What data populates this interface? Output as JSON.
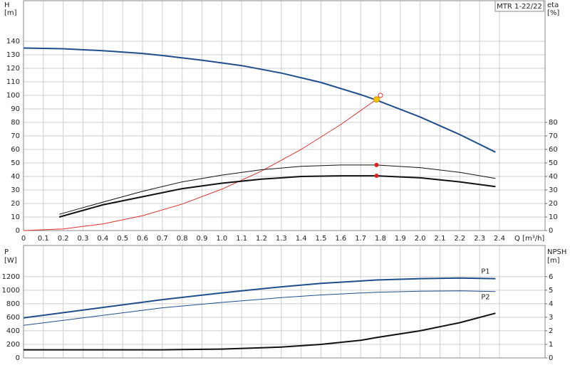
{
  "chart_data": [
    {
      "type": "line",
      "legend": "MTR 1-22/22",
      "y_label": "H",
      "y_unit": "[m]",
      "y2_label": "eta",
      "y2_unit": "[%]",
      "x_label": "Q [m³/h]",
      "xlim": [
        0,
        2.63
      ],
      "ylim": [
        0,
        170
      ],
      "y2lim": [
        0,
        170
      ],
      "grid": true,
      "xticks": [
        0,
        0.1,
        0.2,
        0.3,
        0.4,
        0.5,
        0.6,
        0.7,
        0.8,
        0.9,
        {
          "value": 1,
          "label": "1.0"
        },
        1.1,
        1.2,
        1.3,
        1.4,
        1.5,
        1.6,
        1.7,
        1.8,
        1.9,
        {
          "value": 2,
          "label": "2.0"
        },
        2.1,
        2.2,
        2.3,
        2.4
      ],
      "yticks": [
        0,
        10,
        20,
        30,
        40,
        50,
        60,
        70,
        80,
        90,
        100,
        110,
        120,
        130,
        140
      ],
      "y2ticks": [
        0,
        10,
        20,
        30,
        40,
        50,
        60,
        70,
        80
      ],
      "duty_point": {
        "x": 1.78,
        "y": 97,
        "color": "#f5c400"
      },
      "requested_point": {
        "x": 1.8,
        "y": 100,
        "color": "#e03030"
      },
      "series": [
        {
          "color": "#1f4e8c",
          "width": 2,
          "x": [
            0,
            0.2,
            0.4,
            0.6,
            0.7,
            0.9,
            1.1,
            1.3,
            1.5,
            1.7,
            1.78,
            2.0,
            2.2,
            2.38
          ],
          "values": [
            135,
            134.5,
            133,
            131,
            129.5,
            126,
            122,
            116.5,
            109.5,
            100.5,
            96.5,
            84,
            71,
            58
          ]
        },
        {
          "color": "#e03030",
          "width": 1,
          "x": [
            0,
            0.2,
            0.4,
            0.6,
            0.8,
            1.0,
            1.2,
            1.4,
            1.6,
            1.78
          ],
          "values": [
            0,
            1.2,
            4.9,
            11,
            19.6,
            30.6,
            44,
            60,
            78.4,
            97
          ]
        },
        {
          "color": "#111111",
          "width": 1,
          "axis": "y2",
          "dot": "#e02020",
          "x": [
            0.18,
            0.4,
            0.6,
            0.8,
            1.0,
            1.2,
            1.4,
            1.6,
            1.78,
            2.0,
            2.2,
            2.38
          ],
          "values": [
            12,
            21,
            29,
            36,
            41,
            45,
            47.5,
            48.5,
            48.5,
            46.5,
            43,
            38.5
          ]
        },
        {
          "color": "#111111",
          "width": 2,
          "axis": "y2",
          "dot": "#e02020",
          "x": [
            0.18,
            0.4,
            0.6,
            0.8,
            1.0,
            1.2,
            1.4,
            1.6,
            1.78,
            2.0,
            2.2,
            2.38
          ],
          "values": [
            10,
            19,
            25,
            31,
            35,
            38,
            40,
            40.5,
            40.5,
            39,
            36,
            32.5
          ]
        }
      ]
    },
    {
      "type": "line",
      "y_label": "P",
      "y_unit": "[W]",
      "y2_label": "NPSH",
      "y2_unit": "[m]",
      "xlim": [
        0,
        2.63
      ],
      "ylim": [
        0,
        1660
      ],
      "y2lim": [
        0,
        8.3
      ],
      "grid": true,
      "yticks": [
        0,
        200,
        400,
        600,
        800,
        1000,
        1200
      ],
      "y2ticks": [
        0,
        1,
        2,
        3,
        4,
        5,
        6
      ],
      "series": [
        {
          "name": "P1",
          "color": "#1f4e8c",
          "width": 2,
          "dot": "#e02020",
          "x": [
            0,
            0.7,
            1.0,
            1.3,
            1.5,
            1.78,
            2.0,
            2.2,
            2.38
          ],
          "values": [
            590,
            860,
            960,
            1050,
            1100,
            1150,
            1170,
            1180,
            1170
          ]
        },
        {
          "name": "P2",
          "color": "#1f4e8c",
          "width": 1,
          "dot": "#e02020",
          "x": [
            0,
            0.7,
            1.0,
            1.3,
            1.5,
            1.78,
            2.0,
            2.2,
            2.38
          ],
          "values": [
            480,
            740,
            820,
            890,
            930,
            970,
            985,
            990,
            980
          ]
        },
        {
          "color": "#111111",
          "width": 2,
          "axis": "y2",
          "dot": "#e02020",
          "x": [
            0,
            0.7,
            1.0,
            1.3,
            1.5,
            1.7,
            1.78,
            2.0,
            2.2,
            2.38
          ],
          "values": [
            0.6,
            0.6,
            0.65,
            0.8,
            1.0,
            1.3,
            1.5,
            2.0,
            2.6,
            3.3
          ]
        }
      ]
    }
  ]
}
